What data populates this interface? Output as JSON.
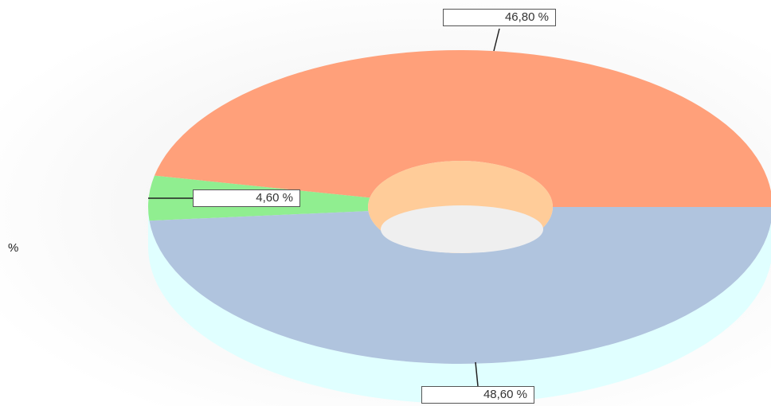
{
  "chart_data": {
    "type": "pie",
    "variant": "3d-doughnut",
    "title": "",
    "unit_label": "%",
    "legend": false,
    "slices": [
      {
        "label": "",
        "value": 46.8,
        "display": "46,80 %",
        "color": "#ffa07a"
      },
      {
        "label": "",
        "value": 48.6,
        "display": "48,60 %",
        "color": "#b0c4de"
      },
      {
        "label": "",
        "value": 4.6,
        "display": "4,60 %",
        "color": "#90ee90"
      }
    ],
    "colors": {
      "side_wall": "#e0ffff",
      "hole_inner": "#ffcc99"
    }
  }
}
